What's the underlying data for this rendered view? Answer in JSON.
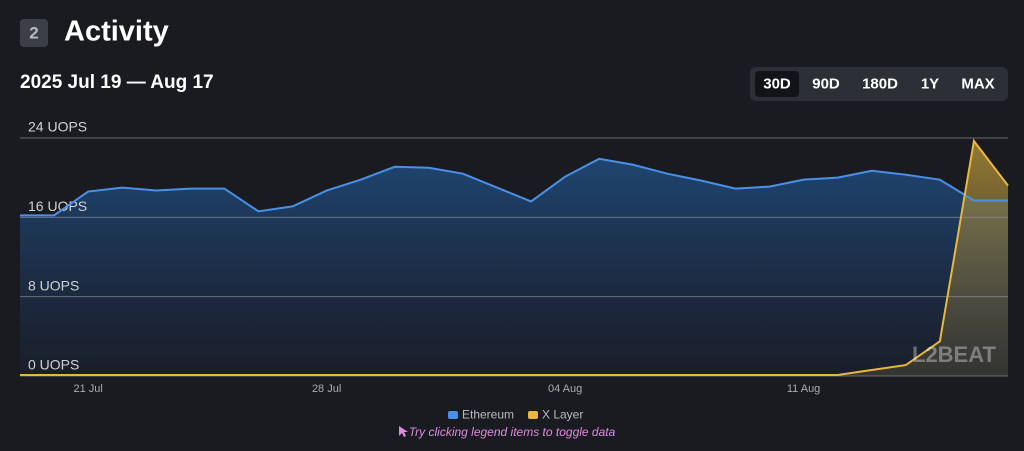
{
  "header": {
    "badge": "2",
    "title": "Activity",
    "date_range": "2025 Jul 19 — Aug 17"
  },
  "range_buttons": {
    "labels": [
      "30D",
      "90D",
      "180D",
      "1Y",
      "MAX"
    ],
    "selected": 0
  },
  "chart_data": {
    "type": "line",
    "area": true,
    "categories": [
      null,
      null,
      "21 Jul",
      null,
      null,
      null,
      null,
      null,
      null,
      "28 Jul",
      null,
      null,
      null,
      null,
      null,
      null,
      "04 Aug",
      null,
      null,
      null,
      null,
      null,
      null,
      "11 Aug",
      null,
      null,
      null,
      null,
      null,
      null
    ],
    "series": [
      {
        "name": "Ethereum",
        "color": "#4a90e8",
        "values": [
          16.2,
          16.2,
          18.6,
          19.0,
          18.7,
          18.9,
          18.9,
          16.6,
          17.1,
          18.7,
          19.8,
          21.1,
          21.0,
          20.4,
          19.0,
          17.6,
          20.1,
          21.9,
          21.3,
          20.4,
          19.7,
          18.9,
          19.1,
          19.8,
          20.0,
          20.7,
          20.3,
          19.8,
          17.7,
          17.7
        ]
      },
      {
        "name": "X Layer",
        "color": "#e8b83c",
        "values": [
          0.1,
          0.1,
          0.1,
          0.1,
          0.1,
          0.1,
          0.1,
          0.1,
          0.1,
          0.1,
          0.1,
          0.1,
          0.1,
          0.1,
          0.1,
          0.1,
          0.1,
          0.1,
          0.1,
          0.1,
          0.1,
          0.1,
          0.1,
          0.1,
          0.1,
          0.6,
          1.1,
          3.5,
          23.7,
          19.2
        ]
      }
    ],
    "ylim": [
      0,
      24
    ],
    "yticks": [
      {
        "value": 0,
        "label": "0 UOPS"
      },
      {
        "value": 8,
        "label": "8 UOPS"
      },
      {
        "value": 16,
        "label": "16 UOPS"
      },
      {
        "value": 24,
        "label": "24 UOPS"
      }
    ],
    "grid": true
  },
  "watermark": "L2BEAT",
  "hint": "Try clicking legend items to toggle data"
}
